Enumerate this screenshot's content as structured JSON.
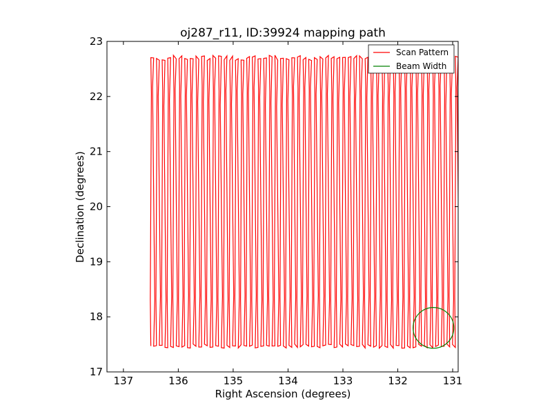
{
  "chart_data": {
    "type": "line",
    "title": "oj287_r11, ID:39924 mapping path",
    "xlabel": "Right Ascension (degrees)",
    "ylabel": "Declination (degrees)",
    "xlim": [
      137.3,
      130.9
    ],
    "ylim": [
      17,
      23
    ],
    "x_inverted": true,
    "xticks": [
      137,
      136,
      135,
      134,
      133,
      132,
      131
    ],
    "yticks": [
      17,
      18,
      19,
      20,
      21,
      22,
      23
    ],
    "grid": false,
    "legend_position": "top-right",
    "series": [
      {
        "name": "Scan Pattern",
        "color": "#ff0000",
        "pattern": "zigzag",
        "ra_start": 136.5,
        "ra_end": 130.9,
        "dec_min": 17.47,
        "dec_max": 22.7,
        "sweeps": 110
      },
      {
        "name": "Beam Width",
        "color": "#008000",
        "shape": "circle",
        "center_ra": 131.35,
        "center_dec": 17.8,
        "radius_deg": 0.37
      }
    ]
  }
}
